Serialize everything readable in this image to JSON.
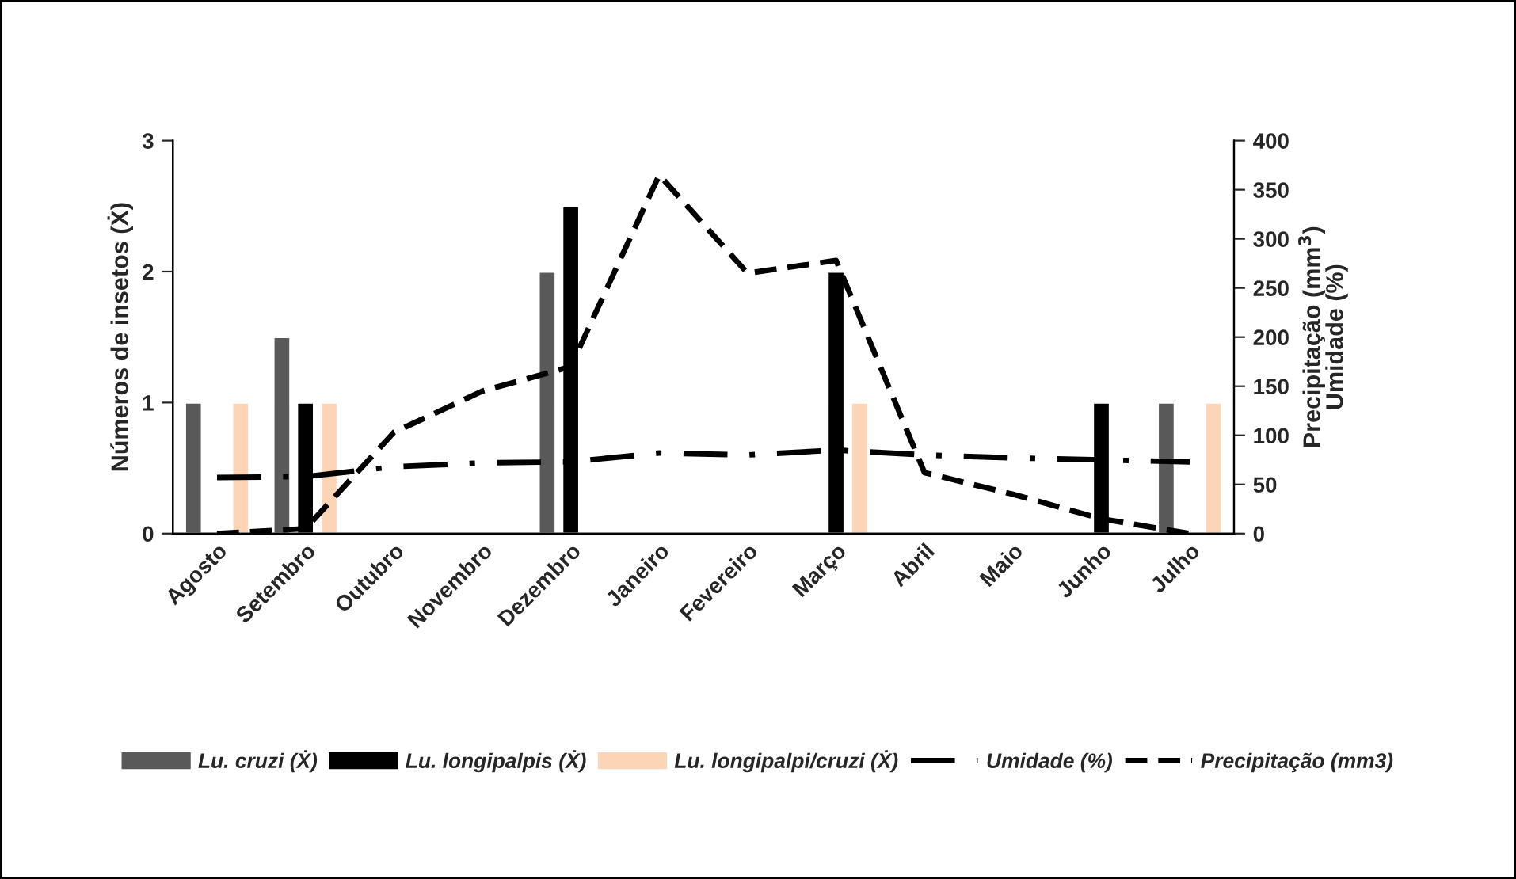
{
  "chart_data": {
    "type": "bar",
    "ylabel": "Números de insetos (Ẋ)",
    "y2label": "Precipitação (mm$^{3}$)\nUmidade (%)",
    "categories": [
      "Agosto",
      "Setembro",
      "Outubro",
      "Novembro",
      "Dezembro",
      "Janeiro",
      "Fevereiro",
      "Março",
      "Abril",
      "Maio",
      "Junho",
      "Julho"
    ],
    "series": [
      {
        "name": "Lu. cruzi (Ẋ)",
        "color": "#595959",
        "values": [
          1,
          1.5,
          null,
          null,
          2,
          null,
          null,
          null,
          null,
          null,
          null,
          1
        ]
      },
      {
        "name": "Lu. longipalpis (Ẋ)",
        "color": "#000000",
        "values": [
          null,
          1,
          null,
          null,
          2.5,
          null,
          null,
          2,
          null,
          null,
          1,
          null
        ]
      },
      {
        "name": "Lu. longipalpi/cruzi (Ẋ)",
        "color": "#fbd5b5",
        "values": [
          1,
          1,
          null,
          null,
          null,
          null,
          null,
          1,
          null,
          null,
          null,
          1
        ]
      },
      {
        "name": "Umidade (%)",
        "type": "line",
        "axis": "y2",
        "color": "#000000",
        "line_style": "dashdot",
        "values": [
          57,
          58,
          68,
          72,
          73,
          82,
          80,
          85,
          80,
          77,
          75,
          73
        ]
      },
      {
        "name": "Precipitação (mm3)",
        "type": "line",
        "axis": "y2",
        "color": "#000000",
        "line_style": "dashed",
        "values": [
          0,
          5,
          103,
          145,
          170,
          365,
          265,
          278,
          62,
          40,
          15,
          0
        ]
      }
    ],
    "ylim": [
      0,
      3
    ],
    "yticks": [
      0,
      1,
      2,
      3
    ],
    "y2lim": [
      0,
      400
    ],
    "y2ticks": [
      0,
      50,
      100,
      150,
      200,
      250,
      300,
      350,
      400
    ],
    "grid": false,
    "legend": "bottom",
    "marker": "none"
  }
}
